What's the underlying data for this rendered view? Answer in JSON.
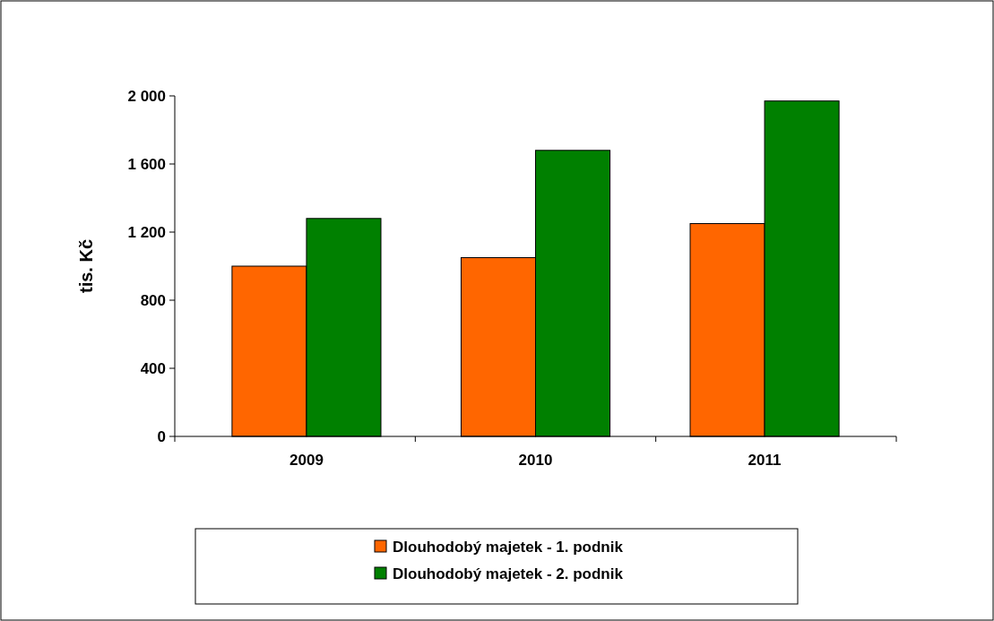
{
  "chart_data": {
    "type": "bar",
    "ylabel": "tis. Kč",
    "categories": [
      "2009",
      "2010",
      "2011"
    ],
    "series": [
      {
        "name": "Dlouhodobý majetek - 1. podnik",
        "color": "#ff6600",
        "values": [
          1000,
          1050,
          1250
        ]
      },
      {
        "name": "Dlouhodobý majetek - 2. podnik",
        "color": "#008000",
        "values": [
          1280,
          1680,
          1970
        ]
      }
    ],
    "ylim": [
      0,
      2000
    ],
    "yticks": [
      0,
      400,
      800,
      {
        "value": 1200,
        "label": "1 200"
      },
      {
        "value": 1600,
        "label": "1 600"
      },
      {
        "value": 2000,
        "label": "2 000"
      }
    ],
    "grid": false,
    "legend": "bottom"
  }
}
